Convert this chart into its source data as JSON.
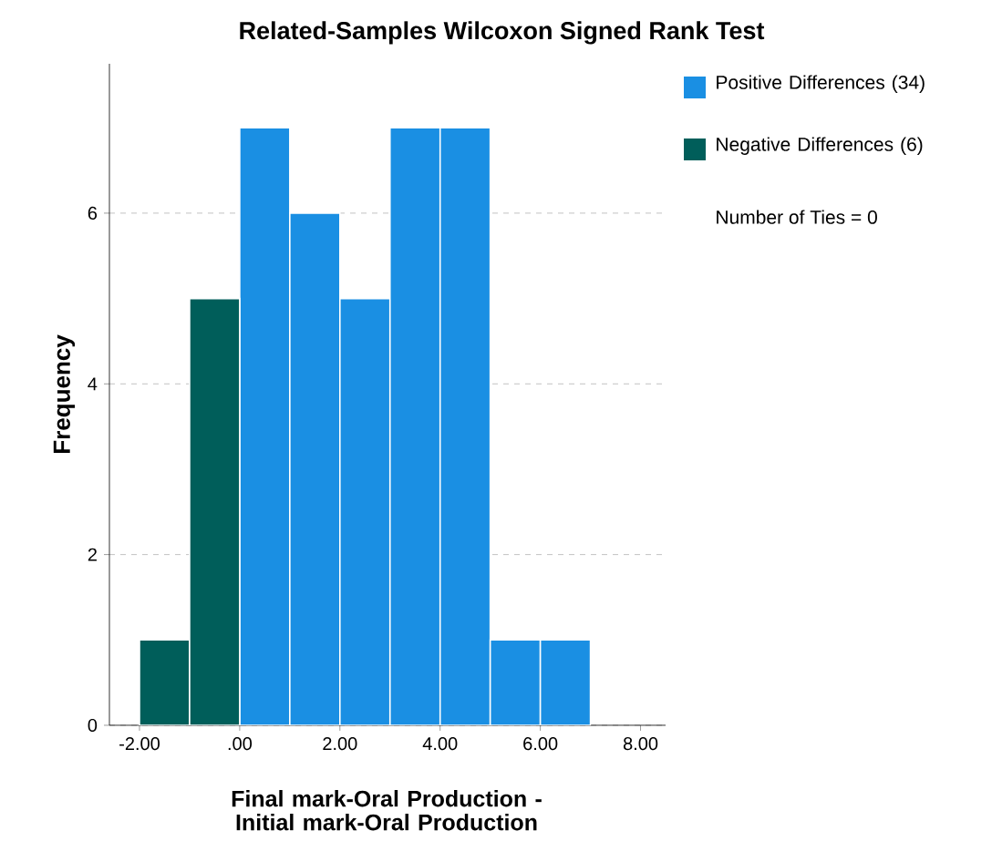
{
  "chart_data": {
    "type": "histogram",
    "title": "Related-Samples Wilcoxon Signed Rank Test",
    "xlabel": "Final mark-Oral Production - Initial mark-Oral Production",
    "ylabel": "Frequency",
    "bins": [
      -2,
      -1,
      0,
      1,
      2,
      3,
      4,
      5,
      6,
      7
    ],
    "series": [
      {
        "name": "Positive Differences (34)",
        "color": "#1a8fe3",
        "values": [
          null,
          null,
          7,
          6,
          5,
          7,
          7,
          1,
          1
        ]
      },
      {
        "name": "Negative Differences (6)",
        "color": "#005e5a",
        "values": [
          1,
          5,
          null,
          null,
          null,
          null,
          null,
          null,
          null
        ]
      }
    ],
    "xlim": [
      -2.6,
      8.5
    ],
    "ylim": [
      0,
      7.75
    ],
    "xticks": [
      {
        "value": -2,
        "label": "-2.00"
      },
      {
        "value": 0,
        "label": ".00"
      },
      {
        "value": 2,
        "label": "2.00"
      },
      {
        "value": 4,
        "label": "4.00"
      },
      {
        "value": 6,
        "label": "6.00"
      },
      {
        "value": 8,
        "label": "8.00"
      }
    ],
    "yticks": [
      0,
      2,
      4,
      6
    ],
    "grid": "y",
    "legend": "right",
    "annotations": [
      "Number of Ties = 0"
    ]
  }
}
